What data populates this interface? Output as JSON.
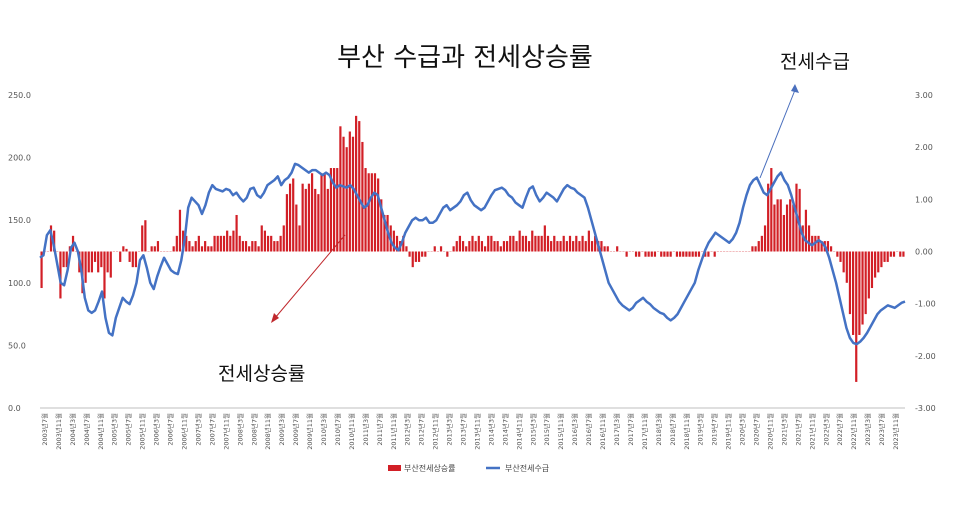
{
  "chart_data": {
    "type": "bar+line",
    "title": "부산 수급과 전세상승률",
    "annotations": {
      "line": "전세수급",
      "bars": "전세상승률"
    },
    "left_axis": {
      "ticks": [
        "250.0",
        "200.0",
        "150.0",
        "100.0",
        "50.0",
        "0.0"
      ],
      "ylim": [
        0,
        250
      ]
    },
    "right_axis": {
      "ticks": [
        "3.00",
        "2.00",
        "1.00",
        "0.00",
        "-1.00",
        "-2.00",
        "-3.00"
      ],
      "ylim": [
        -3,
        3
      ]
    },
    "x_tick_labels": [
      "2003년7월",
      "2003년11월",
      "2004년3월",
      "2004년7월",
      "2004년11월",
      "2005년3월",
      "2005년7월",
      "2005년11월",
      "2006년3월",
      "2006년7월",
      "2006년11월",
      "2007년3월",
      "2007년7월",
      "2007년11월",
      "2008년3월",
      "2008년7월",
      "2008년11월",
      "2009년3월",
      "2009년7월",
      "2009년11월",
      "2010년3월",
      "2010년7월",
      "2010년11월",
      "2011년3월",
      "2011년7월",
      "2011년11월",
      "2012년3월",
      "2012년7월",
      "2012년11월",
      "2013년3월",
      "2013년7월",
      "2013년11월",
      "2014년3월",
      "2014년7월",
      "2014년11월",
      "2015년3월",
      "2015년7월",
      "2015년11월",
      "2016년3월",
      "2016년7월",
      "2016년11월",
      "2017년3월",
      "2017년7월",
      "2017년11월",
      "2018년3월",
      "2018년7월",
      "2018년11월",
      "2019년3월",
      "2019년7월",
      "2019년11월",
      "2020년3월",
      "2020년7월",
      "2020년11월",
      "2021년3월",
      "2021년7월",
      "2021년11월",
      "2022년3월",
      "2022년7월",
      "2022년11월",
      "2023년3월",
      "2023년7월",
      "2023년11월"
    ],
    "series": [
      {
        "name": "부산전세상승률",
        "type": "bar",
        "axis": "right",
        "color": "#d21f26",
        "values": [
          -0.7,
          0.0,
          0.0,
          0.5,
          0.4,
          0.0,
          -0.9,
          -0.3,
          -0.3,
          0.1,
          0.3,
          0.0,
          -0.4,
          -0.8,
          -0.6,
          -0.4,
          -0.4,
          -0.2,
          -0.4,
          -0.3,
          -0.9,
          -0.4,
          -0.5,
          0.0,
          0.0,
          -0.2,
          0.1,
          0.05,
          -0.2,
          -0.3,
          -0.3,
          0.0,
          0.5,
          0.6,
          0.0,
          0.1,
          0.1,
          0.2,
          0.0,
          0.0,
          0.0,
          0.0,
          0.1,
          0.3,
          0.8,
          0.4,
          0.3,
          0.2,
          0.1,
          0.2,
          0.3,
          0.1,
          0.2,
          0.1,
          0.1,
          0.3,
          0.3,
          0.3,
          0.3,
          0.4,
          0.3,
          0.4,
          0.7,
          0.3,
          0.2,
          0.2,
          0.1,
          0.2,
          0.2,
          0.1,
          0.5,
          0.4,
          0.3,
          0.3,
          0.2,
          0.2,
          0.3,
          0.5,
          1.1,
          1.3,
          1.4,
          0.9,
          0.5,
          1.3,
          1.2,
          1.3,
          1.5,
          1.2,
          1.1,
          1.5,
          1.5,
          1.2,
          1.6,
          1.6,
          1.6,
          2.4,
          2.2,
          2.0,
          2.3,
          2.2,
          2.6,
          2.5,
          2.1,
          1.6,
          1.5,
          1.5,
          1.5,
          1.4,
          1.0,
          0.7,
          0.7,
          0.5,
          0.4,
          0.3,
          0.2,
          0.3,
          0.1,
          -0.1,
          -0.3,
          -0.2,
          -0.2,
          -0.1,
          -0.1,
          0.0,
          0.0,
          0.1,
          0.0,
          0.1,
          0.0,
          -0.1,
          0.0,
          0.1,
          0.2,
          0.3,
          0.2,
          0.1,
          0.2,
          0.3,
          0.2,
          0.3,
          0.2,
          0.1,
          0.3,
          0.3,
          0.2,
          0.2,
          0.1,
          0.2,
          0.2,
          0.3,
          0.3,
          0.2,
          0.4,
          0.3,
          0.3,
          0.2,
          0.4,
          0.3,
          0.3,
          0.3,
          0.5,
          0.3,
          0.2,
          0.3,
          0.2,
          0.2,
          0.3,
          0.2,
          0.3,
          0.2,
          0.3,
          0.2,
          0.3,
          0.2,
          0.4,
          0.2,
          0.3,
          0.2,
          0.2,
          0.1,
          0.1,
          0.0,
          0.0,
          0.1,
          0.0,
          0.0,
          -0.1,
          0.0,
          0.0,
          -0.1,
          -0.1,
          0.0,
          -0.1,
          -0.1,
          -0.1,
          -0.1,
          0.0,
          -0.1,
          -0.1,
          -0.1,
          -0.1,
          0.0,
          -0.1,
          -0.1,
          -0.1,
          -0.1,
          -0.1,
          -0.1,
          -0.1,
          -0.1,
          0.0,
          -0.1,
          -0.1,
          0.0,
          -0.1,
          0.0,
          0.0,
          0.0,
          0.0,
          0.0,
          0.0,
          0.0,
          0.0,
          0.0,
          0.0,
          0.0,
          0.1,
          0.1,
          0.2,
          0.3,
          0.5,
          1.3,
          1.6,
          0.9,
          1.0,
          1.0,
          0.7,
          0.9,
          1.0,
          0.9,
          1.3,
          1.2,
          0.5,
          0.8,
          0.5,
          0.3,
          0.3,
          0.3,
          0.2,
          0.2,
          0.2,
          0.1,
          0.0,
          -0.1,
          -0.2,
          -0.4,
          -0.6,
          -1.2,
          -1.6,
          -2.5,
          -1.6,
          -1.4,
          -1.2,
          -0.9,
          -0.7,
          -0.5,
          -0.4,
          -0.3,
          -0.2,
          -0.2,
          -0.1,
          -0.1,
          0.0,
          -0.1,
          -0.1
        ]
      },
      {
        "name": "부산전세수급",
        "type": "line",
        "axis": "left",
        "color": "#4472c4",
        "values": [
          120,
          122,
          138,
          142,
          130,
          115,
          100,
          98,
          110,
          128,
          132,
          125,
          110,
          88,
          78,
          76,
          78,
          85,
          93,
          72,
          60,
          58,
          72,
          80,
          88,
          85,
          83,
          90,
          100,
          118,
          122,
          112,
          100,
          95,
          105,
          113,
          120,
          115,
          110,
          108,
          107,
          118,
          135,
          160,
          168,
          165,
          162,
          155,
          162,
          172,
          178,
          175,
          174,
          173,
          175,
          174,
          170,
          172,
          168,
          165,
          168,
          175,
          176,
          170,
          168,
          172,
          178,
          180,
          182,
          185,
          178,
          182,
          184,
          188,
          195,
          194,
          192,
          190,
          188,
          190,
          190,
          188,
          186,
          188,
          186,
          180,
          176,
          178,
          177,
          176,
          178,
          175,
          170,
          165,
          160,
          162,
          168,
          172,
          170,
          160,
          150,
          140,
          132,
          128,
          126,
          132,
          140,
          145,
          150,
          152,
          150,
          150,
          152,
          148,
          148,
          150,
          155,
          160,
          162,
          158,
          160,
          162,
          165,
          170,
          172,
          166,
          162,
          160,
          158,
          160,
          165,
          170,
          174,
          175,
          176,
          174,
          170,
          168,
          164,
          162,
          160,
          168,
          175,
          177,
          170,
          165,
          168,
          172,
          170,
          168,
          165,
          170,
          175,
          178,
          176,
          175,
          172,
          170,
          168,
          160,
          150,
          140,
          130,
          120,
          110,
          100,
          95,
          90,
          85,
          82,
          80,
          78,
          80,
          84,
          86,
          88,
          85,
          83,
          80,
          78,
          76,
          75,
          72,
          70,
          72,
          75,
          80,
          85,
          90,
          95,
          100,
          110,
          118,
          126,
          132,
          136,
          140,
          138,
          136,
          134,
          132,
          135,
          140,
          148,
          160,
          170,
          178,
          182,
          184,
          178,
          172,
          170,
          175,
          180,
          185,
          188,
          182,
          178,
          170,
          160,
          150,
          140,
          134,
          132,
          130,
          132,
          134,
          132,
          128,
          120,
          110,
          100,
          88,
          76,
          64,
          56,
          52,
          51,
          53,
          56,
          60,
          65,
          70,
          75,
          78,
          80,
          82,
          81,
          80,
          82,
          84,
          85
        ]
      }
    ],
    "legend": [
      "부산전세상승률",
      "부산전세수급"
    ],
    "legend_position": "bottom",
    "grid": false
  }
}
